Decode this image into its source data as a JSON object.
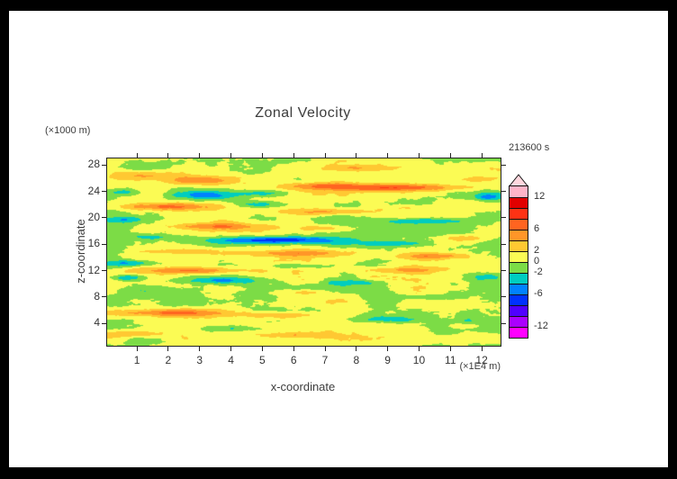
{
  "page": {
    "background": "#ffffff",
    "frame_color": "#000000"
  },
  "chart_data": {
    "type": "heatmap",
    "title": "Zonal Velocity",
    "timestamp_label": "213600 s",
    "xlabel": "x-coordinate",
    "x_unit": "(×1E4 m)",
    "ylabel": "z-coordinate",
    "z_unit": "(×1000 m)",
    "x_ticks": [
      1,
      2,
      3,
      4,
      5,
      6,
      7,
      8,
      9,
      10,
      11,
      12
    ],
    "z_ticks": [
      4,
      8,
      12,
      16,
      20,
      24,
      28
    ],
    "x_range": [
      0.05,
      12.6
    ],
    "z_range": [
      0.6,
      29
    ],
    "grid": false,
    "legend_position": "right-colorbar",
    "colorbar": {
      "tick_values": [
        12,
        6,
        2,
        0,
        -2,
        -6,
        -12
      ],
      "tick_labels": [
        "12",
        "6",
        "2",
        "0",
        "-2",
        "-6",
        "-12"
      ],
      "level_min": -14,
      "level_max": 14,
      "level_step": 2,
      "band_colors": [
        "#ff00ff",
        "#aa00ff",
        "#5000ff",
        "#0032ff",
        "#0082ff",
        "#00cdc0",
        "#7cdc46",
        "#fbfb54",
        "#ffc832",
        "#ff9628",
        "#ff6420",
        "#ff3214",
        "#e10000",
        "#ffb4c8"
      ],
      "over_color": "#ffd7de"
    },
    "background": {
      "base": 0.45,
      "coarse_amp": 1.7,
      "coarse_fx": 0.8,
      "coarse_fz": 0.55,
      "fine_amp": 0.5,
      "fine_fx": 2.6,
      "fine_fz": 1.6,
      "speckle_amp": 0.28,
      "speckle_fx": 7.5,
      "speckle_fz": 4.5
    },
    "features": [
      {
        "x": 1.2,
        "z": 26.4,
        "sx": 0.9,
        "sz": 0.7,
        "a": 4.2
      },
      {
        "x": 2.9,
        "z": 25.7,
        "sx": 0.9,
        "sz": 0.6,
        "a": 4.4
      },
      {
        "x": 1.5,
        "z": 27.9,
        "sx": 1.2,
        "sz": 0.7,
        "a": -1.8
      },
      {
        "x": 8.2,
        "z": 27.6,
        "sx": 1.2,
        "sz": 0.5,
        "a": 3.2
      },
      {
        "x": 9.1,
        "z": 24.6,
        "sx": 2.3,
        "sz": 0.55,
        "a": 7.2
      },
      {
        "x": 6.7,
        "z": 24.9,
        "sx": 1.0,
        "sz": 0.5,
        "a": 4.0
      },
      {
        "x": 11.9,
        "z": 25.8,
        "sx": 0.8,
        "sz": 0.5,
        "a": 3.2
      },
      {
        "x": 3.2,
        "z": 23.4,
        "sx": 0.85,
        "sz": 0.6,
        "a": -4.6
      },
      {
        "x": 0.6,
        "z": 23.9,
        "sx": 0.55,
        "sz": 0.5,
        "a": -3.2
      },
      {
        "x": 12.2,
        "z": 23.2,
        "sx": 0.5,
        "sz": 0.6,
        "a": -4.2
      },
      {
        "x": 5.2,
        "z": 23.7,
        "sx": 0.8,
        "sz": 0.5,
        "a": -2.6
      },
      {
        "x": 1.9,
        "z": 21.7,
        "sx": 1.7,
        "sz": 0.55,
        "a": 5.6
      },
      {
        "x": 4.9,
        "z": 22.0,
        "sx": 0.8,
        "sz": 0.45,
        "a": -3.6
      },
      {
        "x": 7.1,
        "z": 20.9,
        "sx": 1.6,
        "sz": 0.5,
        "a": 4.2
      },
      {
        "x": 9.9,
        "z": 21.5,
        "sx": 1.0,
        "sz": 0.45,
        "a": 3.0
      },
      {
        "x": 0.6,
        "z": 19.7,
        "sx": 0.6,
        "sz": 0.5,
        "a": -4.0
      },
      {
        "x": 10.2,
        "z": 19.5,
        "sx": 1.4,
        "sz": 0.45,
        "a": -4.6
      },
      {
        "x": 3.5,
        "z": 18.7,
        "sx": 1.5,
        "sz": 0.5,
        "a": 4.6
      },
      {
        "x": 6.9,
        "z": 18.4,
        "sx": 1.0,
        "sz": 0.45,
        "a": 3.0
      },
      {
        "x": 5.5,
        "z": 16.6,
        "sx": 1.9,
        "sz": 0.55,
        "a": -7.6
      },
      {
        "x": 8.9,
        "z": 16.1,
        "sx": 1.1,
        "sz": 0.45,
        "a": -4.0
      },
      {
        "x": 1.5,
        "z": 17.1,
        "sx": 0.8,
        "sz": 0.45,
        "a": -3.0
      },
      {
        "x": 11.5,
        "z": 16.9,
        "sx": 0.8,
        "sz": 0.5,
        "a": 3.2
      },
      {
        "x": 6.1,
        "z": 14.6,
        "sx": 1.6,
        "sz": 0.5,
        "a": 4.2
      },
      {
        "x": 10.5,
        "z": 14.2,
        "sx": 1.3,
        "sz": 0.5,
        "a": 5.0
      },
      {
        "x": 2.5,
        "z": 14.9,
        "sx": 0.9,
        "sz": 0.45,
        "a": 2.6
      },
      {
        "x": 0.8,
        "z": 13.1,
        "sx": 0.8,
        "sz": 0.5,
        "a": -4.6
      },
      {
        "x": 6.0,
        "z": 12.7,
        "sx": 1.1,
        "sz": 0.45,
        "a": -3.6
      },
      {
        "x": 2.7,
        "z": 12.0,
        "sx": 1.5,
        "sz": 0.5,
        "a": 5.6
      },
      {
        "x": 9.5,
        "z": 12.1,
        "sx": 1.4,
        "sz": 0.45,
        "a": 3.4
      },
      {
        "x": 3.8,
        "z": 10.5,
        "sx": 1.3,
        "sz": 0.5,
        "a": -4.4
      },
      {
        "x": 8.0,
        "z": 10.2,
        "sx": 1.0,
        "sz": 0.45,
        "a": -3.0
      },
      {
        "x": 0.7,
        "z": 10.9,
        "sx": 0.6,
        "sz": 0.5,
        "a": -4.8
      },
      {
        "x": 12.1,
        "z": 11.0,
        "sx": 0.5,
        "sz": 0.5,
        "a": -2.8
      },
      {
        "x": 6.3,
        "z": 8.7,
        "sx": 0.9,
        "sz": 0.45,
        "a": 3.0
      },
      {
        "x": 10.5,
        "z": 8.0,
        "sx": 1.1,
        "sz": 0.45,
        "a": -2.8
      },
      {
        "x": 1.8,
        "z": 8.6,
        "sx": 1.2,
        "sz": 0.9,
        "a": -1.6
      },
      {
        "x": 2.1,
        "z": 5.6,
        "sx": 1.9,
        "sz": 0.6,
        "a": 6.0
      },
      {
        "x": 5.6,
        "z": 5.2,
        "sx": 1.3,
        "sz": 0.5,
        "a": 4.4
      },
      {
        "x": 9.0,
        "z": 4.6,
        "sx": 1.1,
        "sz": 0.5,
        "a": -4.0
      },
      {
        "x": 3.8,
        "z": 3.2,
        "sx": 0.8,
        "sz": 0.45,
        "a": -3.4
      },
      {
        "x": 1.0,
        "z": 2.4,
        "sx": 0.9,
        "sz": 0.5,
        "a": 4.0
      },
      {
        "x": 6.2,
        "z": 2.2,
        "sx": 1.0,
        "sz": 0.45,
        "a": 3.0
      },
      {
        "x": 11.5,
        "z": 3.6,
        "sx": 0.3,
        "sz": 0.4,
        "a": 2.6
      },
      {
        "x": 11.5,
        "z": 4.5,
        "sx": 0.28,
        "sz": 1.6,
        "a": -1.8
      },
      {
        "x": 10.8,
        "z": 2.8,
        "sx": 0.45,
        "sz": 0.6,
        "a": -2.2
      },
      {
        "x": 11.2,
        "z": 4.0,
        "sx": 1.6,
        "sz": 2.4,
        "a": -1.1
      }
    ]
  }
}
